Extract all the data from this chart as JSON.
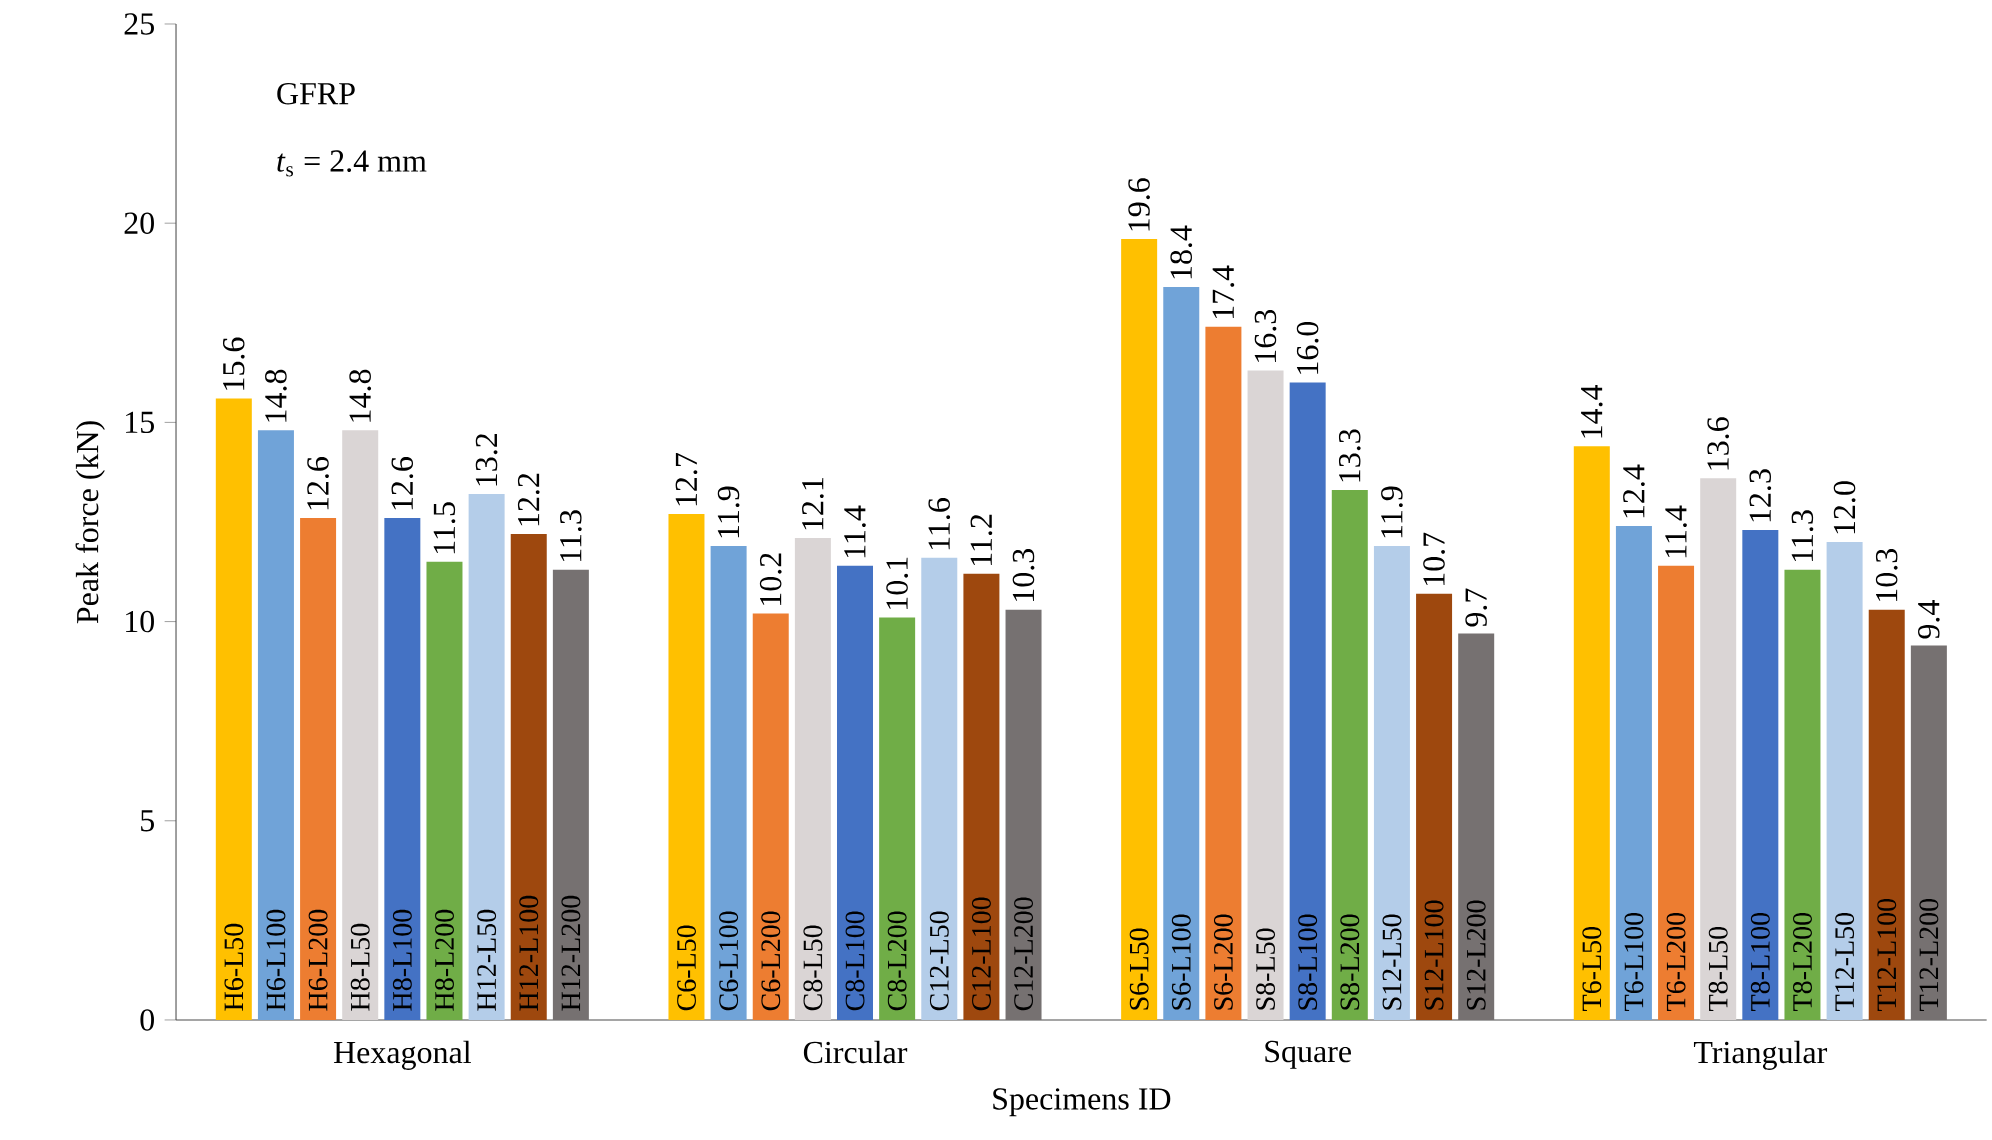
{
  "chart_data": {
    "type": "bar",
    "xlabel": "Specimens ID",
    "ylabel": "Peak force (kN)",
    "categories": [
      "Hexagonal",
      "Circular",
      "Square",
      "Triangular"
    ],
    "series": [
      {
        "color": "#ffc000",
        "values": [
          15.6,
          12.7,
          19.6,
          14.4
        ],
        "value_labels": [
          "15.6",
          "12.7",
          "19.6",
          "14.4"
        ]
      },
      {
        "color": "#70a3d8",
        "values": [
          14.8,
          11.9,
          18.4,
          12.4
        ],
        "value_labels": [
          "14.8",
          "11.9",
          "18.4",
          "12.4"
        ]
      },
      {
        "color": "#ed7d31",
        "values": [
          12.6,
          10.2,
          17.4,
          11.4
        ],
        "value_labels": [
          "12.6",
          "10.2",
          "17.4",
          "11.4"
        ]
      },
      {
        "color": "#dad5d5",
        "values": [
          14.8,
          12.1,
          16.3,
          13.6
        ],
        "value_labels": [
          "14.8",
          "12.1",
          "16.3",
          "13.6"
        ]
      },
      {
        "color": "#4472c4",
        "values": [
          12.6,
          11.4,
          16.0,
          12.3
        ],
        "value_labels": [
          "12.6",
          "11.4",
          "16.0",
          "12.3"
        ]
      },
      {
        "color": "#70ad47",
        "values": [
          11.5,
          10.1,
          13.3,
          11.3
        ],
        "value_labels": [
          "11.5",
          "10.1",
          "13.3",
          "11.3"
        ]
      },
      {
        "color": "#b4cde9",
        "values": [
          13.2,
          11.6,
          11.9,
          12.0
        ],
        "value_labels": [
          "13.2",
          "11.6",
          "11.9",
          "12.0"
        ]
      },
      {
        "color": "#9e480e",
        "values": [
          12.2,
          11.2,
          10.7,
          10.3
        ],
        "value_labels": [
          "12.2",
          "11.2",
          "10.7",
          "10.3"
        ]
      },
      {
        "color": "#767171",
        "values": [
          11.3,
          10.3,
          9.7,
          9.4
        ],
        "value_labels": [
          "11.3",
          "10.3",
          "9.7",
          "9.4"
        ]
      }
    ],
    "ylim": [
      0,
      25
    ],
    "yticks": [
      0,
      5,
      10,
      15,
      20,
      25
    ],
    "annotations": [
      "GFRP",
      "*t*$_{s}$ = 2.4 mm",
      "H6-L50",
      "H6-L100",
      "H6-L200",
      "H8-L50",
      "H8-L100",
      "H8-L200",
      "H12-L50",
      "H12-L100",
      "H12-L200",
      "C6-L50",
      "C6-L100",
      "C6-L200",
      "C8-L50",
      "C8-L100",
      "C8-L200",
      "C12-L50",
      "C12-L100",
      "C12-L200",
      "S6-L50",
      "S6-L100",
      "S6-L200",
      "S8-L50",
      "S8-L100",
      "S8-L200",
      "S12-L50",
      "S12-L100",
      "S12-L200",
      "T6-L50",
      "T6-L100",
      "T6-L200",
      "T8-L50",
      "T8-L100",
      "T8-L200",
      "T12-L50",
      "T12-L100",
      "T12-L200"
    ]
  }
}
